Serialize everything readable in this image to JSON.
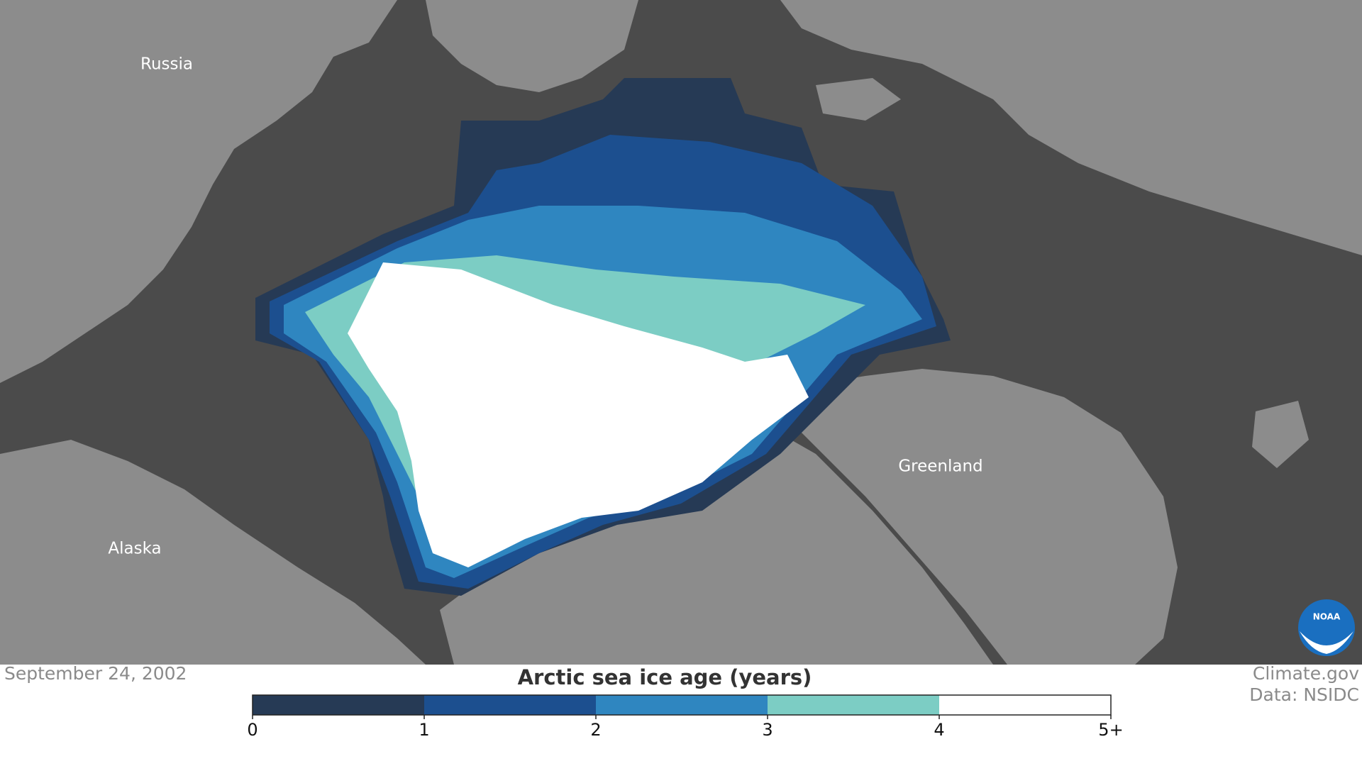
{
  "map": {
    "labels": [
      "Russia",
      "Alaska",
      "Greenland"
    ]
  },
  "date": "September 24, 2002",
  "legend": {
    "title": "Arctic sea ice age (years)",
    "ticks": [
      "0",
      "1",
      "2",
      "3",
      "4",
      "5+"
    ],
    "colors": [
      "#263a55",
      "#1c4f8f",
      "#2f86c0",
      "#7ccdc4",
      "#ffffff"
    ]
  },
  "credits": [
    "Climate.gov",
    "Data: NSIDC"
  ]
}
